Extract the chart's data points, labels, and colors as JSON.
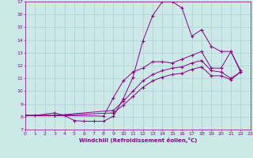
{
  "xlabel": "Windchill (Refroidissement éolien,°C)",
  "xlim": [
    0,
    23
  ],
  "ylim": [
    7,
    17
  ],
  "xticks": [
    0,
    1,
    2,
    3,
    4,
    5,
    6,
    7,
    8,
    9,
    10,
    11,
    12,
    13,
    14,
    15,
    16,
    17,
    18,
    19,
    20,
    21,
    22,
    23
  ],
  "yticks": [
    7,
    8,
    9,
    10,
    11,
    12,
    13,
    14,
    15,
    16,
    17
  ],
  "background_color": "#cce9e7",
  "grid_color": "#aad4d2",
  "line_color": "#8b008b",
  "line1_x": [
    0,
    1,
    3,
    4,
    5,
    6,
    7,
    8,
    9,
    10,
    11,
    12,
    13,
    14,
    15,
    16,
    17,
    18,
    19,
    20,
    21,
    22
  ],
  "line1_y": [
    8.1,
    8.1,
    8.3,
    8.1,
    7.7,
    7.65,
    7.65,
    7.65,
    8.05,
    9.4,
    11.1,
    13.9,
    15.9,
    17.0,
    17.0,
    16.5,
    14.3,
    14.8,
    13.5,
    13.1,
    13.1,
    11.6
  ],
  "line2_x": [
    0,
    3,
    8,
    9,
    10,
    11,
    12,
    13,
    14,
    15,
    16,
    17,
    18,
    19,
    20,
    21,
    22
  ],
  "line2_y": [
    8.1,
    8.1,
    8.05,
    9.5,
    10.8,
    11.5,
    11.8,
    12.3,
    12.3,
    12.2,
    12.5,
    12.8,
    13.1,
    11.8,
    11.8,
    13.1,
    11.5
  ],
  "line3_x": [
    0,
    3,
    9,
    10,
    11,
    12,
    13,
    14,
    15,
    16,
    17,
    18,
    19,
    20,
    21,
    22
  ],
  "line3_y": [
    8.1,
    8.1,
    8.5,
    9.2,
    10.0,
    10.8,
    11.3,
    11.6,
    11.8,
    11.9,
    12.2,
    12.4,
    11.6,
    11.5,
    11.0,
    11.5
  ],
  "line4_x": [
    0,
    3,
    9,
    10,
    11,
    12,
    13,
    14,
    15,
    16,
    17,
    18,
    19,
    20,
    21,
    22
  ],
  "line4_y": [
    8.1,
    8.1,
    8.3,
    8.9,
    9.6,
    10.3,
    10.8,
    11.1,
    11.3,
    11.4,
    11.7,
    11.9,
    11.2,
    11.2,
    10.9,
    11.5
  ]
}
